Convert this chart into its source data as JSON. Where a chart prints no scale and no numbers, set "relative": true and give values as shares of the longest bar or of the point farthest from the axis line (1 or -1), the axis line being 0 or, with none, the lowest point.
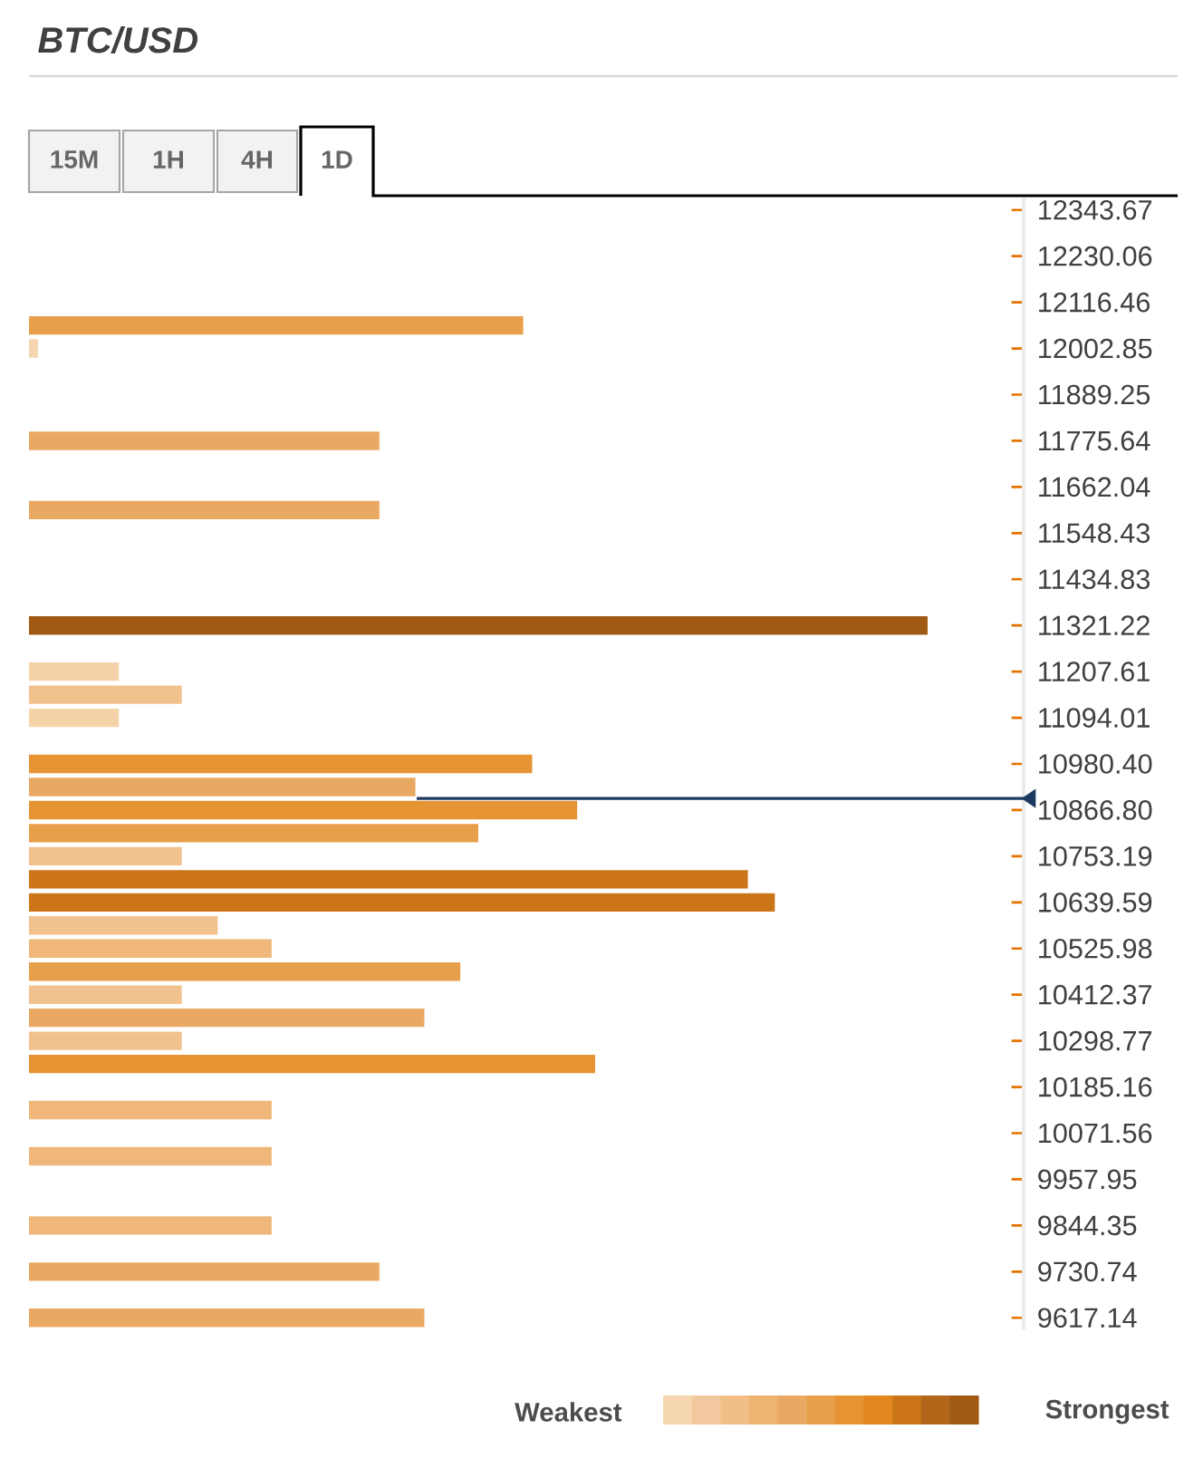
{
  "chart_data": {
    "type": "bar",
    "orientation": "horizontal",
    "relative": true,
    "title": "BTC/USD",
    "annotations": [
      "15M",
      "1H",
      "4H",
      "1D",
      "Weakest",
      "Strongest"
    ],
    "categories": [
      "12343.67",
      null,
      "12230.06",
      null,
      "12116.46",
      null,
      "12002.85",
      null,
      "11889.25",
      null,
      "11775.64",
      null,
      "11662.04",
      null,
      "11548.43",
      null,
      "11434.83",
      null,
      "11321.22",
      null,
      "11207.61",
      null,
      "11094.01",
      null,
      "10980.40",
      null,
      "10866.80",
      null,
      "10753.19",
      null,
      "10639.59",
      null,
      "10525.98",
      null,
      "10412.37",
      null,
      "10298.77",
      null,
      "10185.16",
      null,
      "10071.56",
      null,
      "9957.95",
      null,
      "9844.35",
      null,
      "9730.74",
      null,
      "9617.14"
    ],
    "values": [
      null,
      null,
      null,
      null,
      null,
      0.55,
      0.01,
      null,
      null,
      null,
      0.39,
      null,
      null,
      0.39,
      null,
      null,
      null,
      null,
      1.0,
      null,
      0.1,
      0.17,
      0.1,
      null,
      0.56,
      0.43,
      0.61,
      0.5,
      0.17,
      0.8,
      0.83,
      0.21,
      0.27,
      0.48,
      0.17,
      0.44,
      0.17,
      0.63,
      null,
      0.27,
      null,
      0.27,
      null,
      null,
      0.27,
      null,
      0.39,
      null,
      0.44
    ],
    "colors": [
      null,
      null,
      null,
      null,
      null,
      "#e89f4a",
      "#f5d6b0",
      null,
      null,
      null,
      "#eaa962",
      null,
      null,
      "#eaa962",
      null,
      null,
      null,
      null,
      "#a05a14",
      null,
      "#f5d3a8",
      "#f2c28e",
      "#f5d3a8",
      null,
      "#e69433",
      "#eaa962",
      "#e69433",
      "#e89f4a",
      "#f2c28e",
      "#cc7518",
      "#cc7518",
      "#f2c28e",
      "#efb779",
      "#e89f4a",
      "#f2c28e",
      "#eaa962",
      "#f2c28e",
      "#e69433",
      null,
      "#efb779",
      null,
      "#efb779",
      null,
      null,
      "#efb779",
      null,
      "#eaa962",
      null,
      "#eaa962"
    ]
  }
}
